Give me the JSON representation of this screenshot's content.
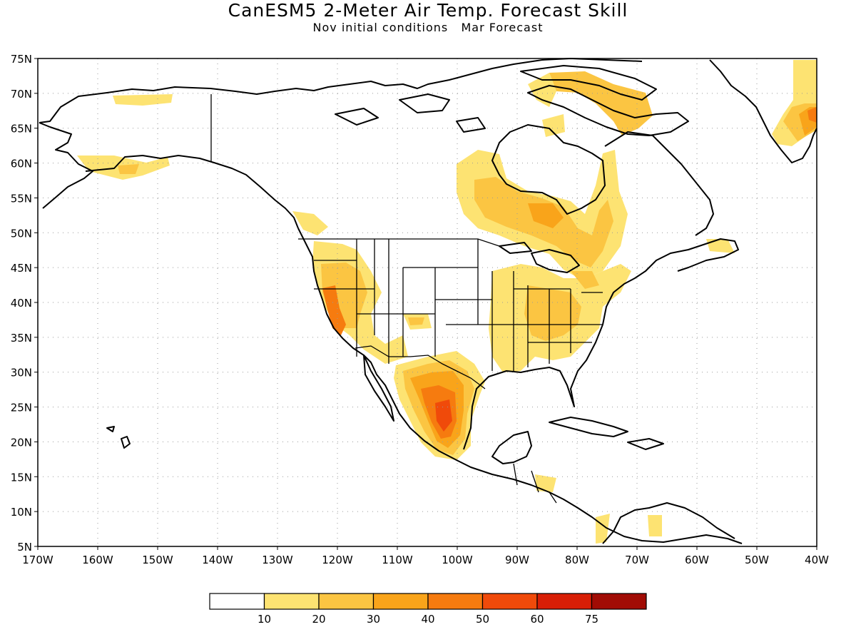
{
  "title": "CanESM5 2-Meter Air Temp. Forecast Skill",
  "subtitle": "Nov initial conditions   Mar Forecast",
  "lat_labels": [
    "75N",
    "70N",
    "65N",
    "60N",
    "55N",
    "50N",
    "45N",
    "40N",
    "35N",
    "30N",
    "25N",
    "20N",
    "15N",
    "10N",
    "5N"
  ],
  "lon_labels": [
    "170W",
    "160W",
    "150W",
    "140W",
    "130W",
    "120W",
    "110W",
    "100W",
    "90W",
    "80W",
    "70W",
    "60W",
    "50W",
    "40W"
  ],
  "legend": {
    "labels": [
      "10",
      "20",
      "30",
      "40",
      "50",
      "60",
      "75"
    ],
    "colors": [
      "#ffffff",
      "#fde372",
      "#fbc542",
      "#f9a41a",
      "#f67b0f",
      "#f04a0a",
      "#d81e06",
      "#a10c05"
    ]
  }
}
